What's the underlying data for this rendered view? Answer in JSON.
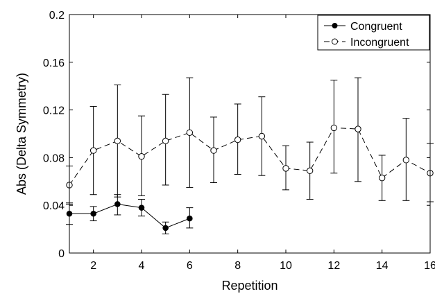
{
  "chart_data": {
    "type": "line",
    "title": "",
    "xlabel": "Repetition",
    "ylabel": "Abs (Delta Symmetry)",
    "xlim": [
      1,
      16
    ],
    "ylim": [
      0,
      0.2
    ],
    "xticks": [
      2,
      4,
      6,
      8,
      10,
      12,
      14,
      16
    ],
    "xtick_labels": [
      "2",
      "4",
      "6",
      "8",
      "10",
      "12",
      "14",
      "16"
    ],
    "yticks": [
      0,
      0.04,
      0.08,
      0.12,
      0.16,
      0.2
    ],
    "ytick_labels": [
      "0",
      "0.04",
      "0.08",
      "0.12",
      "0.16",
      "0.2"
    ],
    "grid": false,
    "legend_position": "top-right",
    "series": [
      {
        "name": "Congruent",
        "marker": "filled-circle",
        "line_style": "solid",
        "color": "#000000",
        "x": [
          1,
          2,
          3,
          4,
          5,
          6
        ],
        "y": [
          0.033,
          0.033,
          0.041,
          0.038,
          0.021,
          0.029
        ],
        "y_low": [
          0.024,
          0.027,
          0.032,
          0.031,
          0.016,
          0.021
        ],
        "y_high": [
          0.042,
          0.039,
          0.049,
          0.045,
          0.026,
          0.038
        ]
      },
      {
        "name": "Incongruent",
        "marker": "open-circle",
        "line_style": "dashed",
        "color": "#000000",
        "x": [
          1,
          2,
          3,
          4,
          5,
          6,
          7,
          8,
          9,
          10,
          11,
          12,
          13,
          14,
          15,
          16
        ],
        "y": [
          0.057,
          0.086,
          0.094,
          0.081,
          0.094,
          0.101,
          0.086,
          0.095,
          0.098,
          0.071,
          0.069,
          0.105,
          0.104,
          0.063,
          0.078,
          0.067
        ],
        "y_low": [
          0.041,
          0.049,
          0.047,
          0.048,
          0.057,
          0.055,
          0.059,
          0.066,
          0.065,
          0.053,
          0.045,
          0.067,
          0.06,
          0.044,
          0.044,
          0.043
        ],
        "y_high": [
          0.073,
          0.123,
          0.141,
          0.115,
          0.133,
          0.147,
          0.114,
          0.125,
          0.131,
          0.09,
          0.093,
          0.145,
          0.147,
          0.082,
          0.113,
          0.092
        ]
      }
    ]
  }
}
